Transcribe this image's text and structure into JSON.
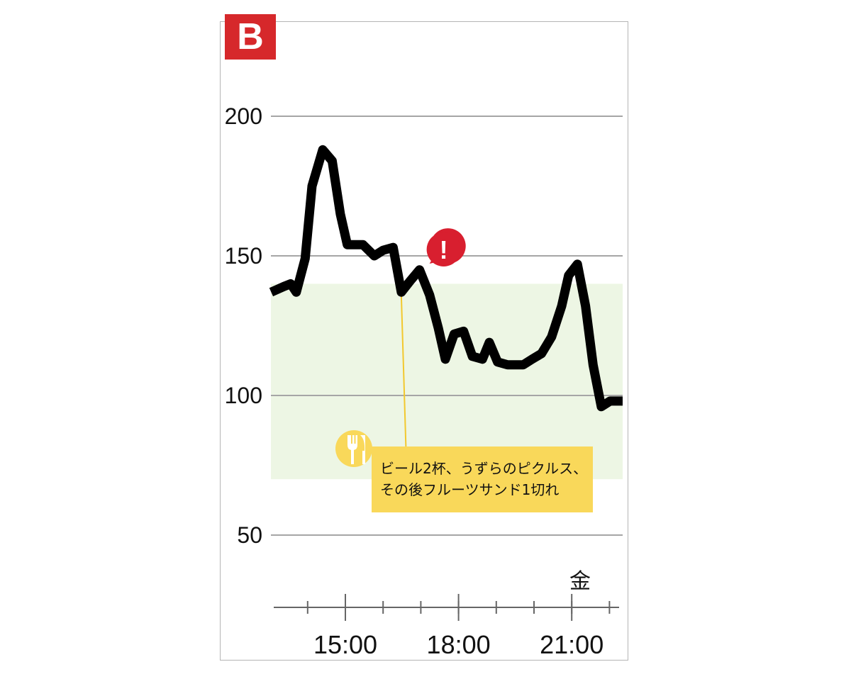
{
  "chart_data": {
    "type": "line",
    "panel_label": "B",
    "title": "",
    "xlabel": "",
    "ylabel": "",
    "yticks": [
      200,
      150,
      100,
      50
    ],
    "ylim": [
      22,
      230
    ],
    "xlim": [
      "13:02",
      "22:21"
    ],
    "xticks_major": [
      "15:00",
      "18:00",
      "21:00"
    ],
    "xticks_minor_interval_hours": 1,
    "day_label": "金",
    "grid": "horizontal",
    "target_range": [
      70,
      140
    ],
    "colors": {
      "line": "#000000",
      "target_band": "#edf6e4",
      "grid": "#a6a6a6",
      "badge": "#d6282b",
      "alert": "#d81f2f",
      "meal": "#f9d85a"
    },
    "series": [
      {
        "x": [
          "13:02",
          "13:22",
          "13:33",
          "13:42",
          "13:56",
          "14:07",
          "14:24",
          "14:39",
          "14:52",
          "15:03",
          "15:28",
          "15:46",
          "16:00",
          "16:16",
          "16:29",
          "16:43",
          "16:58",
          "17:14",
          "17:28",
          "17:39",
          "17:53",
          "18:08",
          "18:22",
          "18:38",
          "18:49",
          "19:02",
          "19:18",
          "19:43",
          "19:57",
          "20:12",
          "20:28",
          "20:44",
          "20:55",
          "21:09",
          "21:22",
          "21:34",
          "21:47",
          "22:01",
          "22:21"
        ],
        "y": [
          137,
          139,
          140,
          137,
          149,
          175,
          188,
          184,
          165,
          154,
          154,
          150,
          152,
          153,
          137,
          141,
          145,
          136,
          124,
          113,
          122,
          123,
          114,
          113,
          119,
          112,
          111,
          111,
          113,
          115,
          121,
          132,
          143,
          147,
          132,
          111,
          96,
          98,
          98
        ]
      }
    ],
    "annotations": [
      {
        "type": "meal",
        "icon": "fork-knife-icon",
        "time": "16:29",
        "text_lines": [
          "ビール2杯、うずらのピクルス、",
          "その後フルーツサンド1切れ"
        ]
      },
      {
        "type": "alert",
        "icon": "exclamation-icon",
        "time": "16:58",
        "symbol": "!"
      }
    ]
  }
}
